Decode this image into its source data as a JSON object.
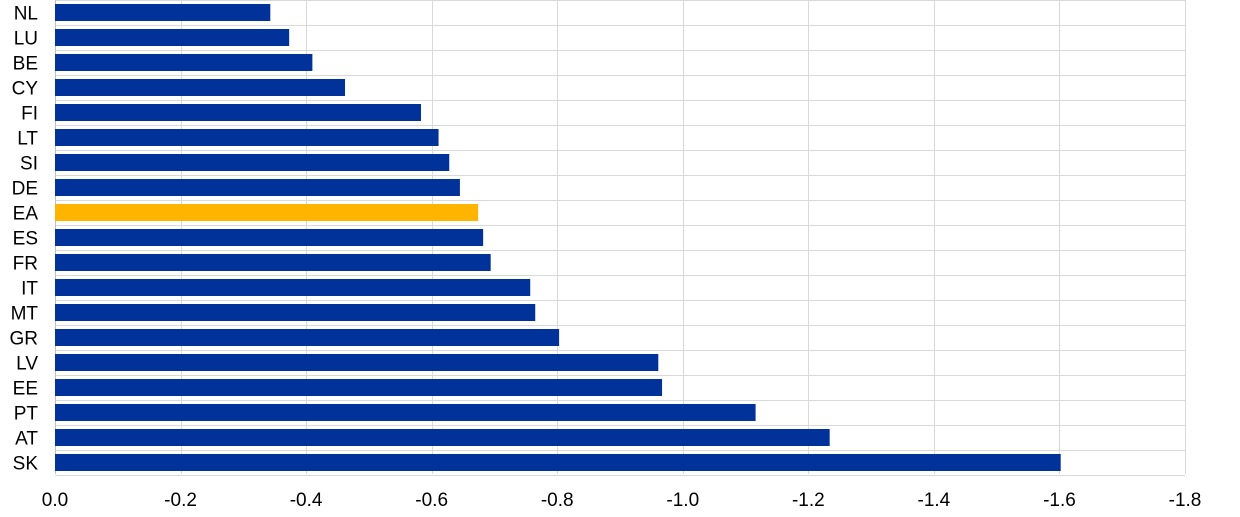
{
  "chart_data": {
    "type": "bar",
    "orientation": "horizontal",
    "categories": [
      "NL",
      "LU",
      "BE",
      "CY",
      "FI",
      "LT",
      "SI",
      "DE",
      "EA",
      "ES",
      "FR",
      "IT",
      "MT",
      "GR",
      "LV",
      "EE",
      "PT",
      "AT",
      "SK"
    ],
    "values": [
      -0.343,
      -0.373,
      -0.41,
      -0.462,
      -0.583,
      -0.611,
      -0.628,
      -0.645,
      -0.674,
      -0.682,
      -0.694,
      -0.757,
      -0.765,
      -0.803,
      -0.961,
      -0.967,
      -1.116,
      -1.234,
      -1.602
    ],
    "highlight_category": "EA",
    "x_ticks": [
      "0.0",
      "-0.2",
      "-0.4",
      "-0.6",
      "-0.8",
      "-1.0",
      "-1.2",
      "-1.4",
      "-1.6",
      "-1.8"
    ],
    "xlim": [
      0,
      -1.8
    ],
    "title": "",
    "xlabel": "",
    "ylabel": "",
    "grid": true,
    "legend": "none",
    "colors": {
      "bar": "#003299",
      "highlight": "#ffb400"
    }
  }
}
